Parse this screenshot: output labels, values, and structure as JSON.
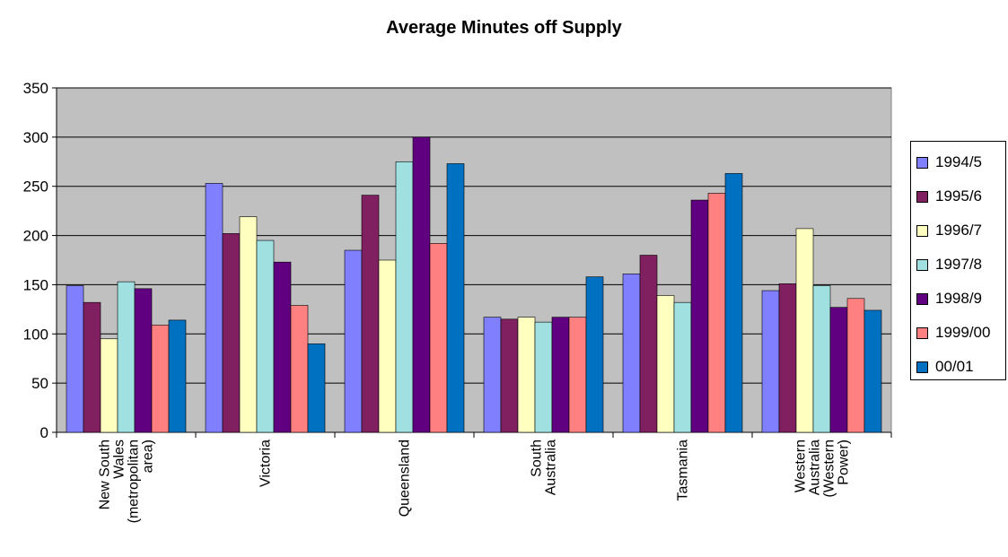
{
  "chart_data": {
    "type": "bar",
    "title": "Average Minutes off Supply",
    "xlabel": "",
    "ylabel": "",
    "ylim": [
      0,
      350
    ],
    "yticks": [
      0,
      50,
      100,
      150,
      200,
      250,
      300,
      350
    ],
    "grid": true,
    "legend_position": "right",
    "categories": [
      "New South Wales (metropolitan area)",
      "Victoria",
      "Queensland",
      "South Australia",
      "Tasmania",
      "Western Australia (Western Power)"
    ],
    "series": [
      {
        "name": "1994/5",
        "color": "#8080ff",
        "values": [
          149,
          253,
          185,
          117,
          161,
          144
        ]
      },
      {
        "name": "1995/6",
        "color": "#802060",
        "values": [
          132,
          202,
          241,
          115,
          180,
          151
        ]
      },
      {
        "name": "1996/7",
        "color": "#ffffc0",
        "values": [
          95,
          219,
          175,
          117,
          139,
          207
        ]
      },
      {
        "name": "1997/8",
        "color": "#a0e0e0",
        "values": [
          153,
          195,
          275,
          112,
          132,
          149
        ]
      },
      {
        "name": "1998/9",
        "color": "#600080",
        "values": [
          146,
          173,
          300,
          117,
          236,
          127
        ]
      },
      {
        "name": "1999/00",
        "color": "#ff8080",
        "values": [
          109,
          129,
          192,
          117,
          243,
          136
        ]
      },
      {
        "name": "00/01",
        "color": "#0070c0",
        "values": [
          114,
          90,
          273,
          158,
          263,
          124
        ]
      }
    ],
    "plot_background": "#c0c0c0"
  }
}
